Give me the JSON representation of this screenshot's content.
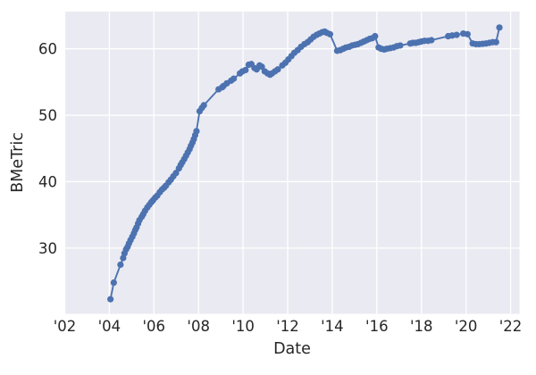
{
  "chart_data": {
    "type": "line",
    "title": "",
    "xlabel": "Date",
    "ylabel": "BMeTric",
    "xlim": [
      2002.0,
      2022.4
    ],
    "ylim": [
      20.1,
      65.6
    ],
    "grid": true,
    "legend": false,
    "x_ticks": [
      {
        "value": 2002,
        "label": "'02"
      },
      {
        "value": 2004,
        "label": "'04"
      },
      {
        "value": 2006,
        "label": "'06"
      },
      {
        "value": 2008,
        "label": "'08"
      },
      {
        "value": 2010,
        "label": "'10"
      },
      {
        "value": 2012,
        "label": "'12"
      },
      {
        "value": 2014,
        "label": "'14"
      },
      {
        "value": 2016,
        "label": "'16"
      },
      {
        "value": 2018,
        "label": "'18"
      },
      {
        "value": 2020,
        "label": "'20"
      },
      {
        "value": 2022,
        "label": "'22"
      }
    ],
    "y_ticks": [
      {
        "value": 30,
        "label": "30"
      },
      {
        "value": 40,
        "label": "40"
      },
      {
        "value": 50,
        "label": "50"
      },
      {
        "value": 60,
        "label": "60"
      }
    ],
    "style": {
      "plot_background": "#eaeaf2",
      "grid_color": "#ffffff",
      "line_color": "#4c72b0",
      "marker_color": "#4c72b0",
      "text_color": "#262626",
      "line_width": 1.9,
      "marker_radius": 3.6,
      "grid_width": 1.3
    },
    "series": [
      {
        "name": "BMeTric",
        "x": [
          2004.05,
          2004.2,
          2004.5,
          2004.62,
          2004.68,
          2004.75,
          2004.82,
          2004.88,
          2004.95,
          2005.03,
          2005.1,
          2005.16,
          2005.22,
          2005.29,
          2005.35,
          2005.45,
          2005.52,
          2005.6,
          2005.7,
          2005.79,
          2005.88,
          2005.96,
          2006.06,
          2006.15,
          2006.26,
          2006.36,
          2006.46,
          2006.54,
          2006.66,
          2006.76,
          2006.87,
          2006.99,
          2007.12,
          2007.2,
          2007.27,
          2007.36,
          2007.44,
          2007.52,
          2007.6,
          2007.66,
          2007.73,
          2007.79,
          2007.85,
          2007.91,
          2008.05,
          2008.15,
          2008.24,
          2008.9,
          2009.06,
          2009.12,
          2009.27,
          2009.46,
          2009.58,
          2009.86,
          2009.97,
          2010.11,
          2010.25,
          2010.37,
          2010.51,
          2010.61,
          2010.74,
          2010.84,
          2010.97,
          2011.1,
          2011.21,
          2011.3,
          2011.43,
          2011.56,
          2011.76,
          2011.9,
          2012.03,
          2012.17,
          2012.3,
          2012.45,
          2012.6,
          2012.75,
          2012.9,
          2013.03,
          2013.16,
          2013.3,
          2013.42,
          2013.55,
          2013.66,
          2013.76,
          2013.9,
          2014.22,
          2014.36,
          2014.49,
          2014.62,
          2014.76,
          2014.89,
          2015.02,
          2015.15,
          2015.29,
          2015.42,
          2015.55,
          2015.68,
          2015.8,
          2015.92,
          2016.08,
          2016.2,
          2016.33,
          2016.45,
          2016.6,
          2016.75,
          2016.9,
          2017.05,
          2017.5,
          2017.62,
          2017.75,
          2017.88,
          2018.0,
          2018.14,
          2018.3,
          2018.45,
          2019.2,
          2019.38,
          2019.58,
          2019.88,
          2020.07,
          2020.3,
          2020.45,
          2020.6,
          2020.75,
          2020.9,
          2021.05,
          2021.2,
          2021.35,
          2021.5
        ],
        "y": [
          22.3,
          24.8,
          27.5,
          28.5,
          29.2,
          29.8,
          30.2,
          30.7,
          31.2,
          31.7,
          32.2,
          32.7,
          33.1,
          33.7,
          34.2,
          34.7,
          35.1,
          35.6,
          36.1,
          36.5,
          36.9,
          37.2,
          37.6,
          37.9,
          38.4,
          38.8,
          39.1,
          39.4,
          39.9,
          40.3,
          40.8,
          41.3,
          42.0,
          42.5,
          42.9,
          43.4,
          43.9,
          44.4,
          44.9,
          45.4,
          45.9,
          46.4,
          47.0,
          47.6,
          50.6,
          51.1,
          51.5,
          53.9,
          54.2,
          54.4,
          54.8,
          55.2,
          55.5,
          56.3,
          56.6,
          56.8,
          57.6,
          57.7,
          57.1,
          56.9,
          57.5,
          57.3,
          56.6,
          56.3,
          56.1,
          56.3,
          56.6,
          56.9,
          57.5,
          57.9,
          58.4,
          58.9,
          59.4,
          59.8,
          60.3,
          60.7,
          61.0,
          61.4,
          61.8,
          62.1,
          62.3,
          62.5,
          62.6,
          62.4,
          62.2,
          59.7,
          59.8,
          60.0,
          60.2,
          60.3,
          60.5,
          60.6,
          60.7,
          60.9,
          61.1,
          61.3,
          61.5,
          61.6,
          61.9,
          60.2,
          60.0,
          59.9,
          60.0,
          60.1,
          60.2,
          60.4,
          60.5,
          60.8,
          60.9,
          60.9,
          61.0,
          61.1,
          61.2,
          61.2,
          61.3,
          61.9,
          62.0,
          62.1,
          62.3,
          62.2,
          60.8,
          60.7,
          60.7,
          60.75,
          60.8,
          60.9,
          61.0,
          61.0,
          63.2
        ]
      }
    ]
  }
}
